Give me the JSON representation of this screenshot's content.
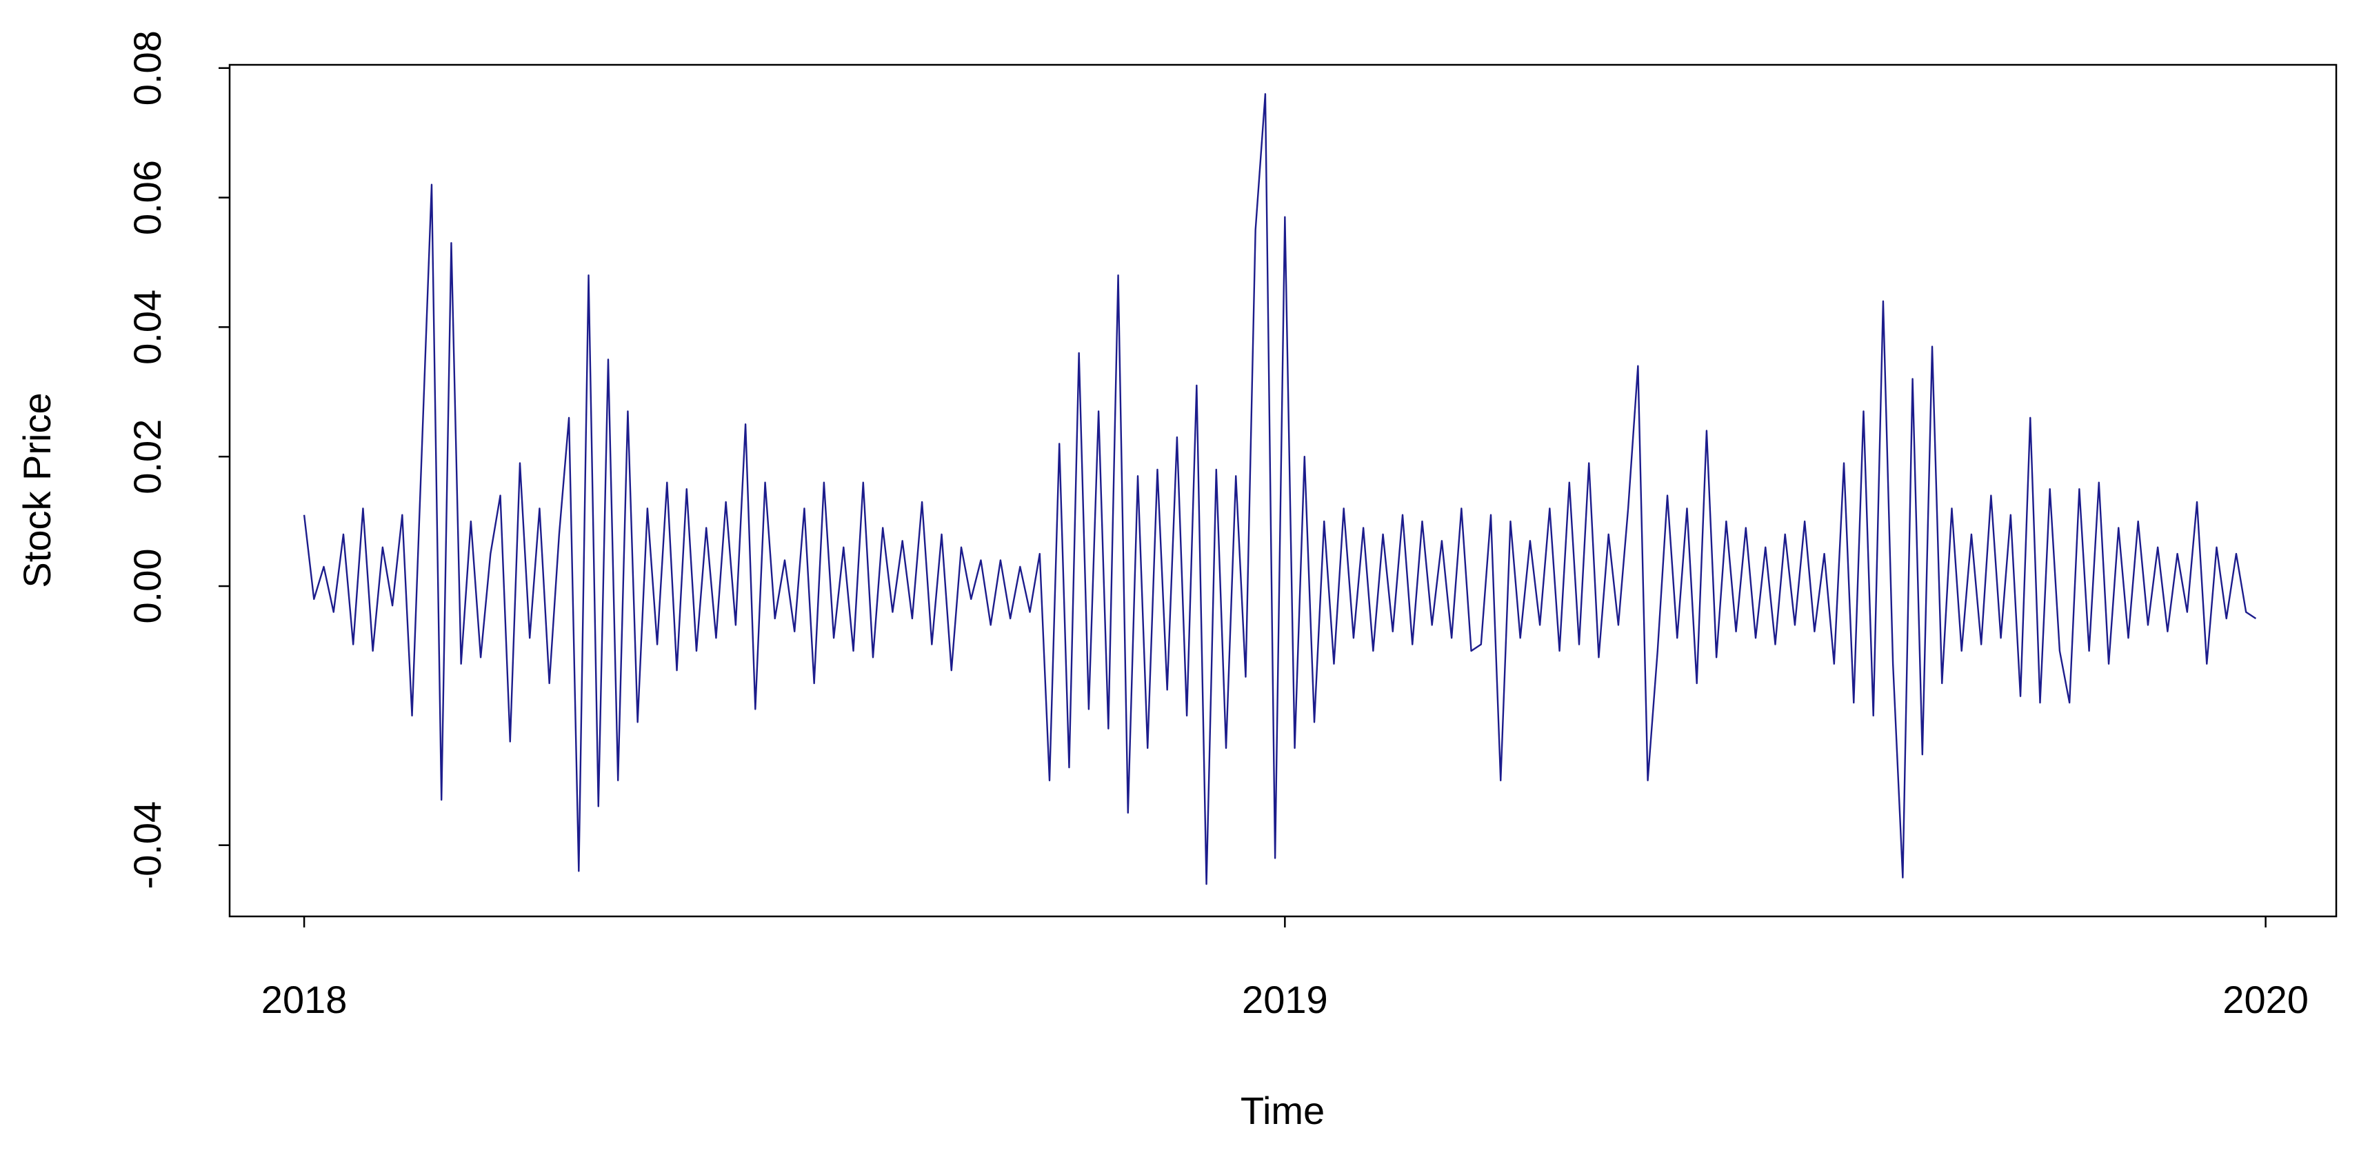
{
  "chart_data": {
    "type": "line",
    "xlabel": "Time",
    "ylabel": "Stock Price",
    "x": [
      2018.0,
      2018.01,
      2018.02,
      2018.03,
      2018.04,
      2018.05,
      2018.06,
      2018.07,
      2018.08,
      2018.09,
      2018.1,
      2018.11,
      2018.12,
      2018.13,
      2018.14,
      2018.15,
      2018.16,
      2018.17,
      2018.18,
      2018.19,
      2018.2,
      2018.21,
      2018.22,
      2018.23,
      2018.24,
      2018.25,
      2018.26,
      2018.27,
      2018.28,
      2018.29,
      2018.3,
      2018.31,
      2018.32,
      2018.33,
      2018.34,
      2018.35,
      2018.36,
      2018.37,
      2018.38,
      2018.39,
      2018.4,
      2018.41,
      2018.42,
      2018.43,
      2018.44,
      2018.45,
      2018.46,
      2018.47,
      2018.48,
      2018.49,
      2018.5,
      2018.51,
      2018.52,
      2018.53,
      2018.54,
      2018.55,
      2018.56,
      2018.57,
      2018.58,
      2018.59,
      2018.6,
      2018.61,
      2018.62,
      2018.63,
      2018.64,
      2018.65,
      2018.66,
      2018.67,
      2018.68,
      2018.69,
      2018.7,
      2018.71,
      2018.72,
      2018.73,
      2018.74,
      2018.75,
      2018.76,
      2018.77,
      2018.78,
      2018.79,
      2018.8,
      2018.81,
      2018.82,
      2018.83,
      2018.84,
      2018.85,
      2018.86,
      2018.87,
      2018.88,
      2018.89,
      2018.9,
      2018.91,
      2018.92,
      2018.93,
      2018.94,
      2018.95,
      2018.96,
      2018.97,
      2018.98,
      2018.99,
      2019.0,
      2019.01,
      2019.02,
      2019.03,
      2019.04,
      2019.05,
      2019.06,
      2019.07,
      2019.08,
      2019.09,
      2019.1,
      2019.11,
      2019.12,
      2019.13,
      2019.14,
      2019.15,
      2019.16,
      2019.17,
      2019.18,
      2019.19,
      2019.2,
      2019.21,
      2019.22,
      2019.23,
      2019.24,
      2019.25,
      2019.26,
      2019.27,
      2019.28,
      2019.29,
      2019.3,
      2019.31,
      2019.32,
      2019.33,
      2019.34,
      2019.35,
      2019.36,
      2019.37,
      2019.38,
      2019.39,
      2019.4,
      2019.41,
      2019.42,
      2019.43,
      2019.44,
      2019.45,
      2019.46,
      2019.47,
      2019.48,
      2019.49,
      2019.5,
      2019.51,
      2019.52,
      2019.53,
      2019.54,
      2019.55,
      2019.56,
      2019.57,
      2019.58,
      2019.59,
      2019.6,
      2019.61,
      2019.62,
      2019.63,
      2019.64,
      2019.65,
      2019.66,
      2019.67,
      2019.68,
      2019.69,
      2019.7,
      2019.71,
      2019.72,
      2019.73,
      2019.74,
      2019.75,
      2019.76,
      2019.77,
      2019.78,
      2019.79,
      2019.8,
      2019.81,
      2019.82,
      2019.83,
      2019.84,
      2019.85,
      2019.86,
      2019.87,
      2019.88,
      2019.89,
      2019.9,
      2019.91,
      2019.92,
      2019.93,
      2019.94,
      2019.95,
      2019.96,
      2019.97,
      2019.98,
      2019.99
    ],
    "series": [
      {
        "color": "#1c1c8c",
        "values": [
          0.011,
          -0.002,
          0.003,
          -0.004,
          0.008,
          -0.009,
          0.012,
          -0.01,
          0.006,
          -0.003,
          0.011,
          -0.02,
          0.021,
          0.062,
          -0.033,
          0.053,
          -0.012,
          0.01,
          -0.011,
          0.005,
          0.014,
          -0.024,
          0.019,
          -0.008,
          0.012,
          -0.015,
          0.008,
          0.026,
          -0.044,
          0.048,
          -0.034,
          0.035,
          -0.03,
          0.027,
          -0.021,
          0.012,
          -0.009,
          0.016,
          -0.013,
          0.015,
          -0.01,
          0.009,
          -0.008,
          0.013,
          -0.006,
          0.025,
          -0.019,
          0.016,
          -0.005,
          0.004,
          -0.007,
          0.012,
          -0.015,
          0.016,
          -0.008,
          0.006,
          -0.01,
          0.016,
          -0.011,
          0.009,
          -0.004,
          0.007,
          -0.005,
          0.013,
          -0.009,
          0.008,
          -0.013,
          0.006,
          -0.002,
          0.004,
          -0.006,
          0.004,
          -0.005,
          0.003,
          -0.004,
          0.005,
          -0.03,
          0.022,
          -0.028,
          0.036,
          -0.019,
          0.027,
          -0.022,
          0.048,
          -0.035,
          0.017,
          -0.025,
          0.018,
          -0.016,
          0.023,
          -0.02,
          0.031,
          -0.046,
          0.018,
          -0.025,
          0.017,
          -0.014,
          0.055,
          0.076,
          -0.042,
          0.057,
          -0.025,
          0.02,
          -0.021,
          0.01,
          -0.012,
          0.012,
          -0.008,
          0.009,
          -0.01,
          0.008,
          -0.007,
          0.011,
          -0.009,
          0.01,
          -0.006,
          0.007,
          -0.008,
          0.012,
          -0.01,
          -0.009,
          0.011,
          -0.03,
          0.01,
          -0.008,
          0.007,
          -0.006,
          0.012,
          -0.01,
          0.016,
          -0.009,
          0.019,
          -0.011,
          0.008,
          -0.006,
          0.012,
          0.034,
          -0.03,
          -0.01,
          0.014,
          -0.008,
          0.012,
          -0.015,
          0.024,
          -0.011,
          0.01,
          -0.007,
          0.009,
          -0.008,
          0.006,
          -0.009,
          0.008,
          -0.006,
          0.01,
          -0.007,
          0.005,
          -0.012,
          0.019,
          -0.018,
          0.027,
          -0.02,
          0.044,
          -0.012,
          -0.045,
          0.032,
          -0.026,
          0.037,
          -0.015,
          0.012,
          -0.01,
          0.008,
          -0.009,
          0.014,
          -0.008,
          0.011,
          -0.017,
          0.026,
          -0.018,
          0.015,
          -0.01,
          -0.018,
          0.015,
          -0.01,
          0.016,
          -0.012,
          0.009,
          -0.008,
          0.01,
          -0.006,
          0.006,
          -0.007,
          0.005,
          -0.004,
          0.013,
          -0.012,
          0.006,
          -0.005,
          0.005,
          -0.004,
          -0.005
        ]
      }
    ],
    "xlim": [
      2017.924,
      2020.072
    ],
    "xticks": [
      2018,
      2019,
      2020
    ],
    "ylim": [
      -0.051,
      0.0805
    ],
    "yticks": [
      {
        "value": -0.04,
        "label": "-0.04"
      },
      {
        "value": 0,
        "label": "0.00"
      },
      {
        "value": 0.02,
        "label": "0.02"
      },
      {
        "value": 0.04,
        "label": "0.04"
      },
      {
        "value": 0.06,
        "label": "0.06"
      },
      {
        "value": 0.08,
        "label": "0.08"
      }
    ],
    "grid": false
  }
}
